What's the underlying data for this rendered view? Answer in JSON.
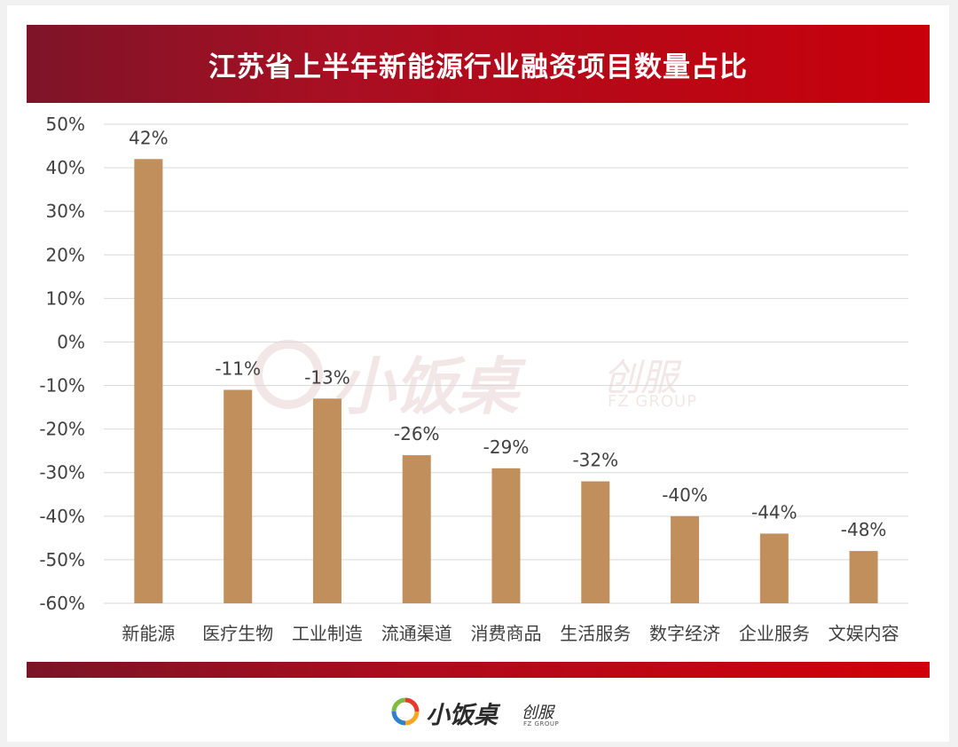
{
  "chart_data": {
    "type": "bar",
    "title": "江苏省上半年新能源行业融资项目数量占比",
    "categories": [
      "新能源",
      "医疗生物",
      "工业制造",
      "流通渠道",
      "消费商品",
      "生活服务",
      "数字经济",
      "企业服务",
      "文娱内容"
    ],
    "values": [
      42,
      -11,
      -13,
      -26,
      -29,
      -32,
      -40,
      -44,
      -48
    ],
    "data_labels": [
      "42%",
      "-11%",
      "-13%",
      "-26%",
      "-29%",
      "-32%",
      "-40%",
      "-44%",
      "-48%"
    ],
    "ylim": [
      -60,
      50
    ],
    "yticks": [
      50,
      40,
      30,
      20,
      10,
      0,
      -10,
      -20,
      -30,
      -40,
      -50,
      -60
    ],
    "ytick_labels": [
      "50%",
      "40%",
      "30%",
      "20%",
      "10%",
      "0%",
      "-10%",
      "-20%",
      "-30%",
      "-40%",
      "-50%",
      "-60%"
    ],
    "grid": true,
    "bar_color": "#c08f5b"
  },
  "branding": {
    "watermark_name": "小饭桌",
    "watermark_sub": "创服",
    "watermark_en": "FZ GROUP",
    "logo_name": "小饭桌",
    "logo_sub": "创服",
    "logo_en": "FZ GROUP"
  },
  "colors": {
    "banner": "#c8000b",
    "grid": "#d9d9d9",
    "text": "#404040"
  }
}
